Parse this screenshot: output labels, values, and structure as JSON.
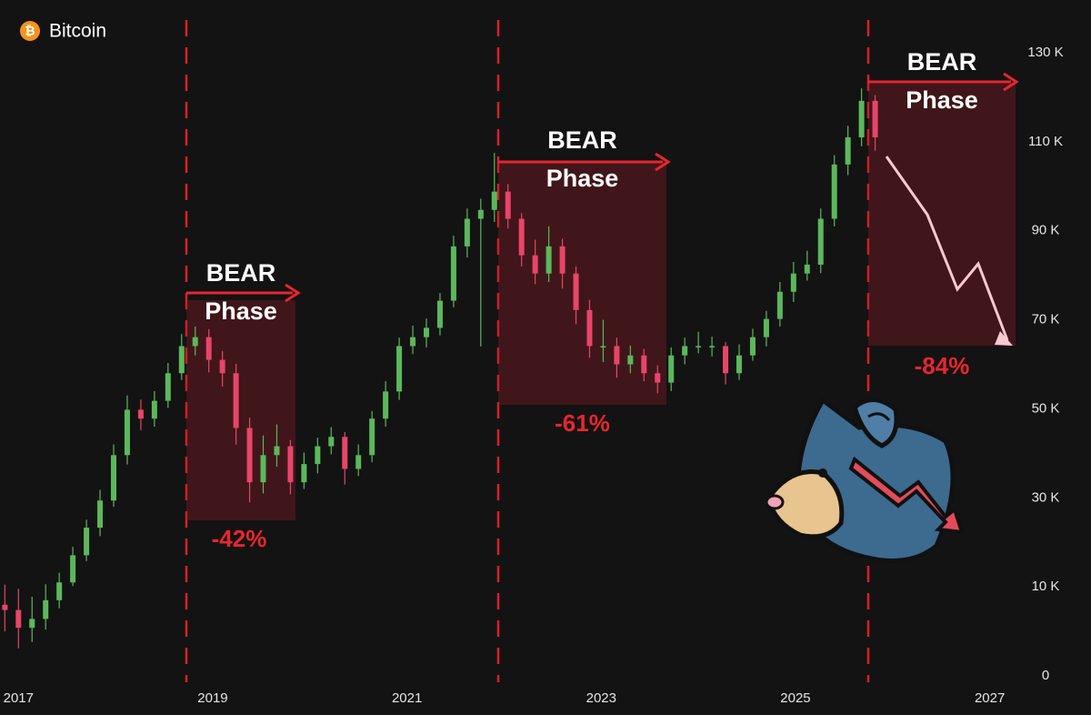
{
  "chart_data": {
    "type": "candlestick",
    "title": "Bitcoin",
    "logo_symbol": "₿",
    "x": [
      2016.86,
      2017.0,
      2017.14,
      2017.28,
      2017.42,
      2017.56,
      2017.7,
      2017.84,
      2017.98,
      2018.12,
      2018.26,
      2018.4,
      2018.54,
      2018.68,
      2018.82,
      2018.96,
      2019.1,
      2019.24,
      2019.38,
      2019.52,
      2019.66,
      2019.8,
      2019.94,
      2020.08,
      2020.22,
      2020.36,
      2020.5,
      2020.64,
      2020.78,
      2020.92,
      2021.06,
      2021.2,
      2021.34,
      2021.48,
      2021.62,
      2021.76,
      2021.9,
      2022.04,
      2022.18,
      2022.32,
      2022.46,
      2022.6,
      2022.74,
      2022.88,
      2023.02,
      2023.16,
      2023.3,
      2023.44,
      2023.58,
      2023.72,
      2023.86,
      2024.0,
      2024.14,
      2024.28,
      2024.42,
      2024.56,
      2024.7,
      2024.84,
      2024.98,
      2025.12,
      2025.26,
      2025.4,
      2025.54,
      2025.68,
      2025.82
    ],
    "open": [
      8.0,
      7.4,
      5.4,
      6.4,
      8.5,
      11.0,
      17.1,
      23.3,
      29.4,
      39.6,
      49.8,
      47.8,
      51.8,
      58.0,
      64.1,
      66.1,
      61.0,
      58.0,
      45.7,
      33.5,
      39.6,
      41.6,
      33.5,
      37.6,
      41.6,
      43.7,
      36.5,
      39.6,
      47.8,
      53.9,
      64.1,
      66.1,
      68.2,
      74.3,
      86.5,
      92.7,
      94.7,
      98.8,
      92.7,
      84.5,
      80.4,
      86.5,
      80.4,
      72.2,
      64.1,
      64.1,
      60.0,
      62.0,
      58.0,
      55.9,
      62.0,
      64.1,
      64.1,
      64.1,
      58.0,
      62.0,
      66.1,
      70.2,
      76.3,
      80.4,
      82.4,
      92.7,
      104.9,
      111.0,
      119.2
    ],
    "high": [
      10.5,
      9.8,
      8.9,
      10.6,
      13.2,
      19.0,
      25.1,
      31.8,
      42.0,
      53.0,
      52.1,
      54.0,
      60.3,
      66.8,
      68.5,
      67.9,
      63.0,
      60.1,
      48.0,
      44.0,
      46.5,
      43.0,
      40.2,
      43.5,
      45.9,
      44.8,
      42.0,
      49.5,
      56.2,
      66.0,
      68.7,
      70.3,
      76.0,
      88.9,
      95.0,
      97.2,
      107.5,
      100.5,
      94.0,
      88.0,
      91.0,
      88.2,
      82.0,
      74.5,
      70.0,
      66.0,
      64.2,
      63.5,
      59.8,
      63.8,
      66.0,
      67.3,
      66.2,
      65.0,
      64.5,
      68.0,
      72.0,
      78.5,
      83.0,
      85.5,
      95.0,
      107.0,
      113.6,
      122.0,
      120.5
    ],
    "low": [
      5.0,
      3.1,
      3.8,
      5.2,
      7.6,
      10.2,
      15.8,
      21.4,
      28.0,
      37.5,
      45.2,
      46.0,
      50.2,
      56.5,
      62.0,
      58.2,
      55.0,
      42.0,
      29.0,
      31.0,
      37.0,
      30.8,
      32.0,
      35.5,
      39.8,
      33.0,
      34.9,
      38.0,
      46.0,
      52.0,
      62.3,
      63.8,
      66.5,
      72.8,
      84.0,
      64.0,
      92.0,
      90.5,
      82.0,
      78.0,
      78.5,
      77.0,
      69.0,
      61.5,
      60.5,
      57.0,
      58.0,
      56.2,
      53.5,
      54.0,
      60.0,
      62.5,
      61.8,
      55.5,
      56.5,
      60.8,
      64.0,
      68.5,
      74.0,
      78.8,
      80.5,
      91.0,
      102.5,
      109.0,
      108.0
    ],
    "close": [
      7.4,
      5.4,
      6.4,
      8.5,
      11.0,
      17.1,
      23.3,
      29.4,
      39.6,
      49.8,
      47.8,
      51.8,
      58.0,
      64.1,
      66.1,
      61.0,
      58.0,
      45.7,
      33.5,
      39.6,
      41.6,
      33.5,
      37.6,
      41.6,
      43.7,
      36.5,
      39.6,
      47.8,
      53.9,
      64.1,
      66.1,
      68.2,
      74.3,
      86.5,
      92.7,
      94.7,
      98.8,
      92.7,
      84.5,
      80.4,
      86.5,
      80.4,
      72.2,
      64.1,
      64.1,
      60.0,
      62.0,
      58.0,
      55.9,
      62.0,
      64.1,
      64.1,
      64.1,
      58.0,
      62.0,
      66.1,
      70.2,
      76.3,
      80.4,
      82.4,
      92.7,
      104.9,
      111.0,
      119.2,
      111.0
    ],
    "up_color": "#5cb85c",
    "down_color": "#e8456a",
    "xlim": [
      2016.81,
      2027.2
    ],
    "xticks": [
      2017,
      2019,
      2021,
      2023,
      2025,
      2027
    ],
    "ylim": [
      0,
      130
    ],
    "scale": "tick-spaced",
    "yticks": [
      0,
      {
        "value": 10,
        "label": "10 K"
      },
      {
        "value": 30,
        "label": "30 K"
      },
      {
        "value": 50,
        "label": "50 K"
      },
      {
        "value": 70,
        "label": "70 K"
      },
      {
        "value": 90,
        "label": "90 K"
      },
      {
        "value": 110,
        "label": "110 K"
      },
      {
        "value": 130,
        "label": "130 K"
      }
    ],
    "annotations": [
      {
        "title": "BEAR",
        "subtitle": "Phase",
        "change": "-42%"
      },
      {
        "title": "BEAR",
        "subtitle": "Phase",
        "change": "-61%"
      },
      {
        "title": "BEAR",
        "subtitle": "Phase",
        "change": "-84%"
      }
    ]
  }
}
